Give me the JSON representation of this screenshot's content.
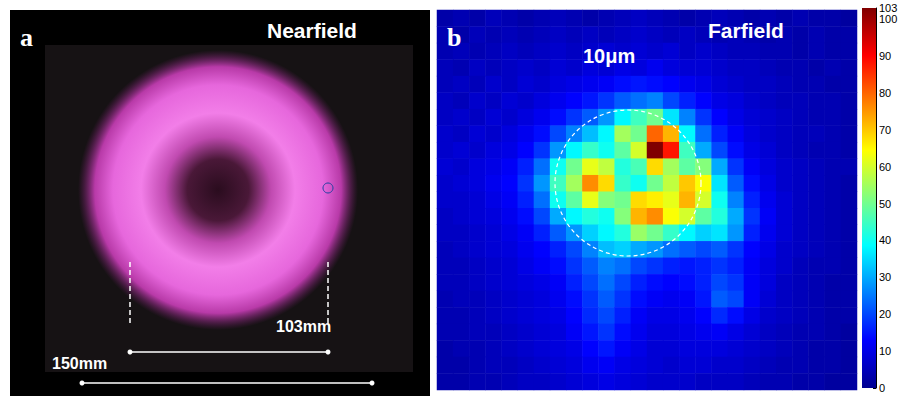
{
  "photo": {
    "type": "photo",
    "panel": "a",
    "title": "Nearfield",
    "annotations": [
      "103mm",
      "150mm"
    ]
  },
  "chart_data": {
    "type": "heatmap",
    "panel": "b",
    "title": "Farfield",
    "annotations": [
      "10μm"
    ],
    "tick_labels": false,
    "cells": [
      [
        3,
        4,
        3,
        5,
        4,
        3,
        4,
        5,
        4,
        3,
        4,
        5,
        6,
        5,
        4,
        3,
        4,
        5,
        4,
        3,
        4,
        3,
        4,
        3,
        3,
        2
      ],
      [
        4,
        3,
        5,
        4,
        5,
        4,
        5,
        6,
        5,
        6,
        5,
        6,
        7,
        6,
        5,
        6,
        5,
        4,
        5,
        4,
        3,
        4,
        3,
        4,
        3,
        3
      ],
      [
        4,
        5,
        4,
        5,
        6,
        5,
        6,
        7,
        6,
        7,
        8,
        7,
        8,
        7,
        8,
        6,
        7,
        6,
        5,
        5,
        4,
        4,
        3,
        4,
        3,
        3
      ],
      [
        5,
        4,
        6,
        5,
        6,
        7,
        6,
        8,
        7,
        9,
        8,
        10,
        9,
        11,
        9,
        8,
        8,
        7,
        6,
        6,
        5,
        4,
        4,
        3,
        4,
        3
      ],
      [
        5,
        6,
        5,
        7,
        6,
        8,
        7,
        9,
        10,
        11,
        12,
        14,
        15,
        14,
        13,
        11,
        10,
        8,
        7,
        6,
        6,
        5,
        4,
        4,
        3,
        3
      ],
      [
        6,
        5,
        7,
        6,
        8,
        7,
        9,
        11,
        13,
        15,
        18,
        22,
        24,
        26,
        20,
        16,
        13,
        10,
        9,
        7,
        6,
        5,
        5,
        4,
        4,
        3
      ],
      [
        6,
        7,
        6,
        8,
        7,
        9,
        11,
        14,
        18,
        22,
        28,
        38,
        45,
        50,
        36,
        26,
        18,
        13,
        10,
        8,
        7,
        6,
        5,
        4,
        4,
        3
      ],
      [
        7,
        6,
        8,
        7,
        9,
        11,
        14,
        20,
        26,
        32,
        38,
        55,
        50,
        80,
        72,
        38,
        24,
        16,
        12,
        9,
        7,
        6,
        5,
        5,
        4,
        3
      ],
      [
        7,
        8,
        7,
        9,
        10,
        13,
        18,
        28,
        38,
        44,
        40,
        48,
        60,
        103,
        88,
        45,
        30,
        20,
        14,
        10,
        8,
        6,
        5,
        4,
        4,
        3
      ],
      [
        8,
        7,
        9,
        10,
        12,
        16,
        24,
        40,
        50,
        62,
        58,
        42,
        46,
        68,
        55,
        48,
        52,
        30,
        18,
        12,
        9,
        7,
        6,
        5,
        4,
        4
      ],
      [
        7,
        8,
        9,
        11,
        13,
        18,
        28,
        45,
        55,
        76,
        68,
        44,
        40,
        50,
        58,
        70,
        64,
        36,
        22,
        14,
        10,
        7,
        6,
        5,
        4,
        3
      ],
      [
        7,
        7,
        8,
        10,
        12,
        16,
        24,
        40,
        48,
        62,
        52,
        50,
        68,
        66,
        62,
        72,
        60,
        40,
        26,
        16,
        11,
        8,
        6,
        5,
        4,
        3
      ],
      [
        6,
        7,
        8,
        9,
        11,
        14,
        20,
        30,
        38,
        42,
        40,
        52,
        72,
        76,
        64,
        60,
        48,
        42,
        30,
        18,
        12,
        8,
        6,
        5,
        4,
        3
      ],
      [
        6,
        6,
        7,
        8,
        10,
        12,
        16,
        22,
        28,
        34,
        38,
        42,
        54,
        50,
        44,
        38,
        34,
        36,
        28,
        16,
        11,
        8,
        6,
        5,
        4,
        3
      ],
      [
        5,
        6,
        7,
        8,
        9,
        11,
        13,
        16,
        20,
        26,
        32,
        34,
        30,
        28,
        24,
        22,
        20,
        22,
        18,
        13,
        10,
        7,
        6,
        5,
        4,
        3
      ],
      [
        5,
        5,
        6,
        7,
        8,
        10,
        12,
        14,
        18,
        22,
        26,
        24,
        20,
        18,
        16,
        15,
        16,
        18,
        16,
        12,
        9,
        7,
        5,
        4,
        4,
        3
      ],
      [
        5,
        5,
        6,
        7,
        8,
        9,
        10,
        12,
        16,
        20,
        24,
        20,
        16,
        14,
        13,
        14,
        16,
        20,
        18,
        12,
        9,
        6,
        5,
        4,
        3,
        3
      ],
      [
        4,
        5,
        5,
        6,
        7,
        8,
        9,
        11,
        14,
        18,
        22,
        18,
        14,
        12,
        11,
        12,
        15,
        22,
        20,
        12,
        8,
        6,
        5,
        4,
        3,
        3
      ],
      [
        4,
        4,
        5,
        6,
        7,
        8,
        9,
        10,
        13,
        17,
        20,
        16,
        12,
        10,
        10,
        11,
        13,
        17,
        14,
        10,
        7,
        6,
        5,
        4,
        3,
        3
      ],
      [
        4,
        4,
        5,
        5,
        6,
        7,
        8,
        9,
        12,
        15,
        18,
        14,
        11,
        9,
        9,
        10,
        11,
        12,
        10,
        8,
        6,
        5,
        4,
        4,
        3,
        2
      ],
      [
        3,
        4,
        4,
        5,
        6,
        7,
        8,
        9,
        10,
        13,
        15,
        12,
        10,
        8,
        8,
        9,
        9,
        9,
        8,
        7,
        6,
        5,
        4,
        3,
        3,
        2
      ],
      [
        3,
        3,
        4,
        5,
        5,
        6,
        7,
        8,
        9,
        11,
        12,
        10,
        9,
        8,
        7,
        8,
        8,
        7,
        7,
        6,
        5,
        4,
        4,
        3,
        3,
        2
      ],
      [
        3,
        3,
        4,
        4,
        5,
        6,
        6,
        7,
        8,
        9,
        10,
        9,
        8,
        7,
        7,
        7,
        6,
        6,
        6,
        5,
        4,
        4,
        3,
        3,
        2,
        2
      ]
    ],
    "colorbar": {
      "range": [
        0,
        103
      ],
      "ticks": [
        0,
        10,
        20,
        30,
        40,
        50,
        60,
        70,
        80,
        90,
        100
      ]
    }
  }
}
